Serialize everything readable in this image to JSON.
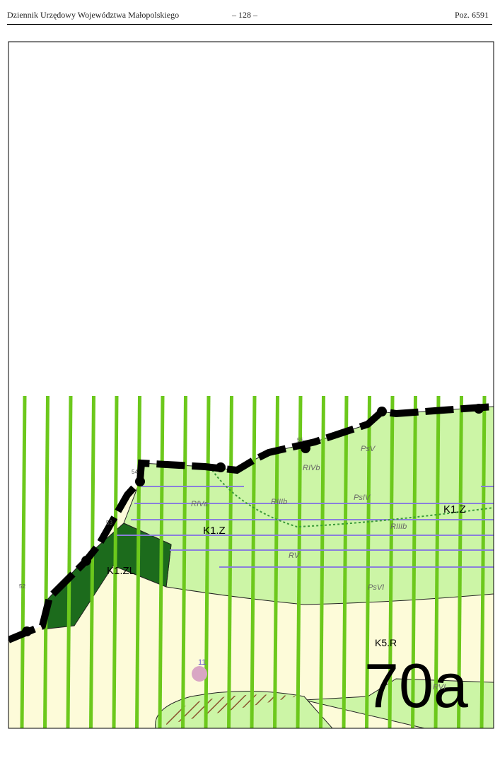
{
  "header": {
    "title": "Dziennik Urzędowy Województwa Małopolskiego",
    "page": "– 128 –",
    "position": "Poz. 6591"
  },
  "map": {
    "zones": [
      "K1.Z",
      "K1.Z",
      "K1.ZL",
      "K5.R"
    ],
    "sheet": "70a",
    "marker": "11",
    "soil_classes": [
      "PsV",
      "RIVb",
      "RIIIb",
      "PsIV",
      "RIVa",
      "RV",
      "RIIIb",
      "PsVI",
      "RVI"
    ],
    "points": [
      "54",
      "55",
      "53",
      "52"
    ]
  }
}
